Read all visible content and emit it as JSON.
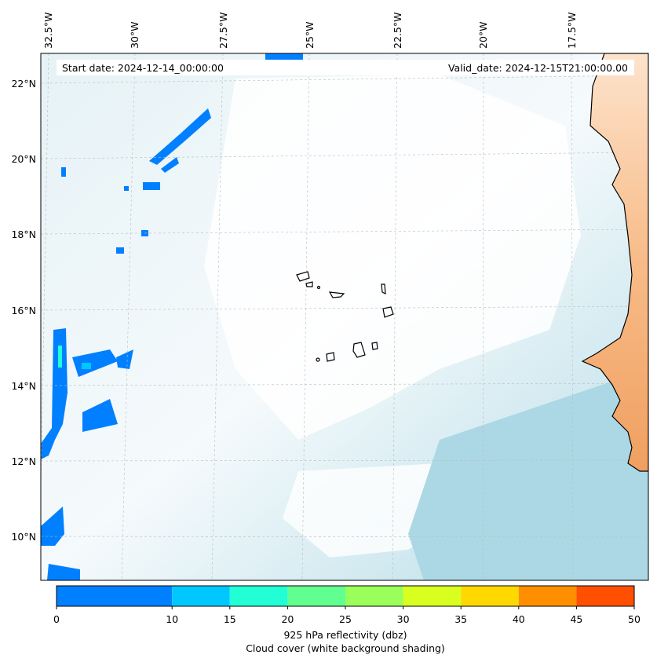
{
  "header": {
    "start_date": "Start date: 2024-12-14_00:00:00",
    "valid_date": "Valid_date: 2024-12-15T21:00:00.00"
  },
  "lon_labels": [
    "32.5°W",
    "30°W",
    "27.5°W",
    "25°W",
    "22.5°W",
    "20°W",
    "17.5°W"
  ],
  "lat_labels": [
    "22°N",
    "20°N",
    "18°N",
    "16°N",
    "14°N",
    "12°N",
    "10°N"
  ],
  "colorbar": {
    "ticks": [
      "0",
      "10",
      "15",
      "20",
      "25",
      "30",
      "35",
      "40",
      "45",
      "50"
    ],
    "colors": [
      "#0080ff",
      "#00c8ff",
      "#22ffd5",
      "#60ff90",
      "#9aff5a",
      "#d9ff20",
      "#ffd800",
      "#ff8f00",
      "#ff4f00"
    ],
    "label_line1": "925 hPa reflectivity (dbz)",
    "label_line2": "Cloud cover (white background shading)"
  }
}
